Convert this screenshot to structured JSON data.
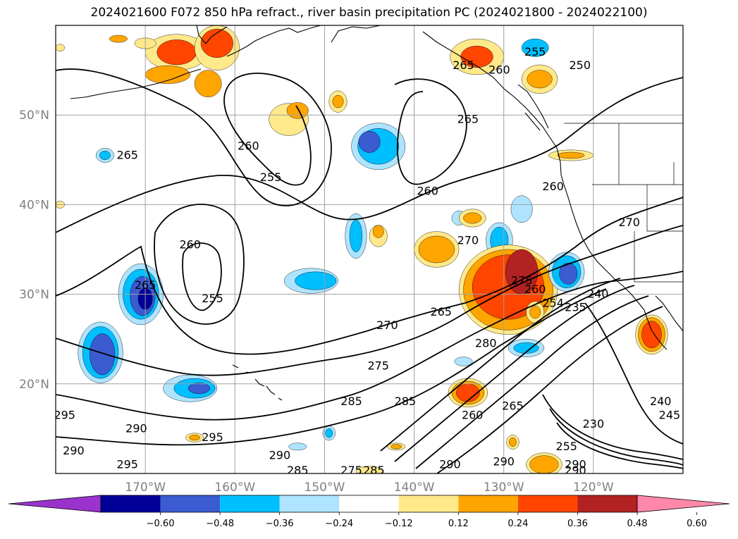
{
  "title": "2024021600 F072 850 hPa refract., river basin precipitation PC (2024021800 - 2024022100)",
  "map": {
    "lon_range": [
      -180,
      -110
    ],
    "lat_range": [
      10,
      60
    ],
    "lat_labels": [
      {
        "lat": 50,
        "text": "50°N"
      },
      {
        "lat": 40,
        "text": "40°N"
      },
      {
        "lat": 30,
        "text": "30°N"
      },
      {
        "lat": 20,
        "text": "20°N"
      }
    ],
    "lon_labels": [
      {
        "lon": -170,
        "text": "170°W"
      },
      {
        "lon": -160,
        "text": "160°W"
      },
      {
        "lon": -150,
        "text": "150°W"
      },
      {
        "lon": -140,
        "text": "140°W"
      },
      {
        "lon": -130,
        "text": "130°W"
      },
      {
        "lon": -120,
        "text": "120°W"
      }
    ],
    "gridline_color": "#a0a0a0",
    "contour_labels": [
      {
        "text": "255",
        "lon": -126.5,
        "lat": 57.0
      },
      {
        "text": "250",
        "lon": -121.5,
        "lat": 55.5
      },
      {
        "text": "260",
        "lon": -130.5,
        "lat": 55.0
      },
      {
        "text": "265",
        "lon": -134.5,
        "lat": 55.5
      },
      {
        "text": "265",
        "lon": -134.0,
        "lat": 49.5
      },
      {
        "text": "265",
        "lon": -172.0,
        "lat": 45.5
      },
      {
        "text": "260",
        "lon": -158.5,
        "lat": 46.5
      },
      {
        "text": "255",
        "lon": -156.0,
        "lat": 43.0
      },
      {
        "text": "260",
        "lon": -138.5,
        "lat": 41.5
      },
      {
        "text": "260",
        "lon": -124.5,
        "lat": 42.0
      },
      {
        "text": "260",
        "lon": -165.0,
        "lat": 35.5
      },
      {
        "text": "255",
        "lon": -162.5,
        "lat": 29.5
      },
      {
        "text": "265",
        "lon": -170.0,
        "lat": 31.0
      },
      {
        "text": "270",
        "lon": -134.0,
        "lat": 36.0
      },
      {
        "text": "270",
        "lon": -116.0,
        "lat": 38.0
      },
      {
        "text": "265",
        "lon": -137.0,
        "lat": 28.0
      },
      {
        "text": "270",
        "lon": -143.0,
        "lat": 26.5
      },
      {
        "text": "280",
        "lon": -132.0,
        "lat": 24.5
      },
      {
        "text": "275",
        "lon": -144.0,
        "lat": 22.0
      },
      {
        "text": "275",
        "lon": -128.0,
        "lat": 31.5
      },
      {
        "text": "260",
        "lon": -126.5,
        "lat": 30.5
      },
      {
        "text": "240",
        "lon": -119.5,
        "lat": 30.0
      },
      {
        "text": "254",
        "lon": -124.5,
        "lat": 29.0
      },
      {
        "text": "235",
        "lon": -122.0,
        "lat": 28.5
      },
      {
        "text": "285",
        "lon": -147.0,
        "lat": 18.0
      },
      {
        "text": "285",
        "lon": -141.0,
        "lat": 18.0
      },
      {
        "text": "260",
        "lon": -133.5,
        "lat": 16.5
      },
      {
        "text": "265",
        "lon": -129.0,
        "lat": 17.5
      },
      {
        "text": "230",
        "lon": -120.0,
        "lat": 15.5
      },
      {
        "text": "240",
        "lon": -112.5,
        "lat": 18.0
      },
      {
        "text": "245",
        "lon": -111.5,
        "lat": 16.5
      },
      {
        "text": "295",
        "lon": -179.0,
        "lat": 16.5
      },
      {
        "text": "290",
        "lon": -171.0,
        "lat": 15.0
      },
      {
        "text": "295",
        "lon": -162.5,
        "lat": 14.0
      },
      {
        "text": "290",
        "lon": -178.0,
        "lat": 12.5
      },
      {
        "text": "295",
        "lon": -172.0,
        "lat": 11.0
      },
      {
        "text": "290",
        "lon": -155.0,
        "lat": 12.0
      },
      {
        "text": "285",
        "lon": -153.0,
        "lat": 10.3
      },
      {
        "text": "275",
        "lon": -147.0,
        "lat": 10.3
      },
      {
        "text": "285",
        "lon": -144.5,
        "lat": 10.3
      },
      {
        "text": "290",
        "lon": -136.0,
        "lat": 11.0
      },
      {
        "text": "290",
        "lon": -130.0,
        "lat": 11.3
      },
      {
        "text": "290",
        "lon": -122.0,
        "lat": 11.0
      },
      {
        "text": "290",
        "lon": -122.0,
        "lat": 10.3
      },
      {
        "text": "255",
        "lon": -123.0,
        "lat": 13.0
      }
    ],
    "filled_regions": [
      {
        "cls": "pos-1",
        "lon": -166.5,
        "lat": 57.0,
        "rx": 3.5,
        "ry": 2.0
      },
      {
        "cls": "pos-3",
        "lon": -166.5,
        "lat": 57.0,
        "rx": 2.2,
        "ry": 1.4
      },
      {
        "cls": "pos-1",
        "lon": -162.0,
        "lat": 57.5,
        "rx": 2.5,
        "ry": 2.5
      },
      {
        "cls": "pos-3",
        "lon": -162.0,
        "lat": 58.0,
        "rx": 1.8,
        "ry": 1.6
      },
      {
        "cls": "pos-2",
        "lon": -167.5,
        "lat": 54.5,
        "rx": 2.5,
        "ry": 1.0
      },
      {
        "cls": "pos-2",
        "lon": -163.0,
        "lat": 53.5,
        "rx": 1.5,
        "ry": 1.5
      },
      {
        "cls": "pos-1",
        "lon": -133.0,
        "lat": 56.5,
        "rx": 3.0,
        "ry": 2.0
      },
      {
        "cls": "pos-3",
        "lon": -133.0,
        "lat": 56.5,
        "rx": 1.8,
        "ry": 1.2
      },
      {
        "cls": "pos-1",
        "lon": -126.0,
        "lat": 54.0,
        "rx": 2.0,
        "ry": 1.6
      },
      {
        "cls": "pos-2",
        "lon": -126.0,
        "lat": 54.0,
        "rx": 1.4,
        "ry": 1.0
      },
      {
        "cls": "neg-2",
        "lon": -126.5,
        "lat": 57.5,
        "rx": 1.5,
        "ry": 1.0
      },
      {
        "cls": "pos-1",
        "lon": -170.0,
        "lat": 58.0,
        "rx": 1.2,
        "ry": 0.6
      },
      {
        "cls": "pos-2",
        "lon": -173.0,
        "lat": 58.5,
        "rx": 1.0,
        "ry": 0.4
      },
      {
        "cls": "pos-1",
        "lon": -148.5,
        "lat": 51.5,
        "rx": 1.0,
        "ry": 1.2
      },
      {
        "cls": "pos-2",
        "lon": -148.5,
        "lat": 51.5,
        "rx": 0.6,
        "ry": 0.7
      },
      {
        "cls": "pos-1",
        "lon": -154.0,
        "lat": 49.5,
        "rx": 2.2,
        "ry": 1.8
      },
      {
        "cls": "pos-2",
        "lon": -153.0,
        "lat": 50.5,
        "rx": 1.2,
        "ry": 0.9
      },
      {
        "cls": "pos-1",
        "lon": -122.5,
        "lat": 45.5,
        "rx": 2.5,
        "ry": 0.6
      },
      {
        "cls": "pos-2",
        "lon": -122.5,
        "lat": 45.5,
        "rx": 1.5,
        "ry": 0.35
      },
      {
        "cls": "neg-1",
        "lon": -144.0,
        "lat": 46.5,
        "rx": 3.0,
        "ry": 2.6
      },
      {
        "cls": "neg-2",
        "lon": -144.0,
        "lat": 46.5,
        "rx": 2.3,
        "ry": 2.0
      },
      {
        "cls": "neg-3",
        "lon": -145.0,
        "lat": 47.0,
        "rx": 1.2,
        "ry": 1.2
      },
      {
        "cls": "neg-1",
        "lon": -174.5,
        "lat": 45.5,
        "rx": 1.0,
        "ry": 0.8
      },
      {
        "cls": "neg-2",
        "lon": -174.5,
        "lat": 45.5,
        "rx": 0.6,
        "ry": 0.5
      },
      {
        "cls": "neg-1",
        "lon": -135.0,
        "lat": 38.5,
        "rx": 0.8,
        "ry": 0.8
      },
      {
        "cls": "neg-1",
        "lon": -128.0,
        "lat": 39.5,
        "rx": 1.2,
        "ry": 1.5
      },
      {
        "cls": "neg-1",
        "lon": -130.5,
        "lat": 36.0,
        "rx": 1.5,
        "ry": 2.0
      },
      {
        "cls": "neg-2",
        "lon": -130.5,
        "lat": 36.0,
        "rx": 1.0,
        "ry": 1.5
      },
      {
        "cls": "neg-1",
        "lon": -146.5,
        "lat": 36.5,
        "rx": 1.2,
        "ry": 2.5
      },
      {
        "cls": "neg-2",
        "lon": -146.5,
        "lat": 36.5,
        "rx": 0.7,
        "ry": 1.8
      },
      {
        "cls": "pos-1",
        "lon": -144.0,
        "lat": 36.5,
        "rx": 1.0,
        "ry": 1.2
      },
      {
        "cls": "pos-2",
        "lon": -144.0,
        "lat": 37.0,
        "rx": 0.6,
        "ry": 0.7
      },
      {
        "cls": "pos-1",
        "lon": -137.5,
        "lat": 35.0,
        "rx": 2.5,
        "ry": 2.0
      },
      {
        "cls": "pos-2",
        "lon": -137.5,
        "lat": 35.0,
        "rx": 2.0,
        "ry": 1.5
      },
      {
        "cls": "pos-1",
        "lon": -133.5,
        "lat": 38.5,
        "rx": 1.5,
        "ry": 1.0
      },
      {
        "cls": "pos-2",
        "lon": -133.5,
        "lat": 38.5,
        "rx": 1.0,
        "ry": 0.6
      },
      {
        "cls": "neg-1",
        "lon": -151.5,
        "lat": 31.5,
        "rx": 3.0,
        "ry": 1.4
      },
      {
        "cls": "neg-2",
        "lon": -151.0,
        "lat": 31.5,
        "rx": 2.3,
        "ry": 1.0
      },
      {
        "cls": "pos-1",
        "lon": -129.5,
        "lat": 30.5,
        "rx": 5.5,
        "ry": 5.0
      },
      {
        "cls": "pos-2",
        "lon": -129.5,
        "lat": 30.5,
        "rx": 5.0,
        "ry": 4.5
      },
      {
        "cls": "pos-3",
        "lon": -129.5,
        "lat": 30.8,
        "rx": 4.0,
        "ry": 3.6
      },
      {
        "cls": "pos-4",
        "lon": -128.0,
        "lat": 32.5,
        "rx": 1.8,
        "ry": 2.5
      },
      {
        "cls": "pos-1",
        "lon": -126.5,
        "lat": 28.0,
        "rx": 1.0,
        "ry": 1.2
      },
      {
        "cls": "pos-2",
        "lon": -126.5,
        "lat": 28.0,
        "rx": 0.6,
        "ry": 0.7
      },
      {
        "cls": "neg-1",
        "lon": -123.0,
        "lat": 32.5,
        "rx": 2.0,
        "ry": 2.2
      },
      {
        "cls": "neg-2",
        "lon": -123.0,
        "lat": 32.5,
        "rx": 1.6,
        "ry": 1.8
      },
      {
        "cls": "neg-3",
        "lon": -122.8,
        "lat": 32.3,
        "rx": 1.0,
        "ry": 1.2
      },
      {
        "cls": "neg-1",
        "lon": -170.5,
        "lat": 30.0,
        "rx": 2.5,
        "ry": 3.4
      },
      {
        "cls": "neg-2",
        "lon": -170.5,
        "lat": 30.0,
        "rx": 2.0,
        "ry": 2.8
      },
      {
        "cls": "neg-3",
        "lon": -170.3,
        "lat": 29.8,
        "rx": 1.4,
        "ry": 2.2
      },
      {
        "cls": "neg-4",
        "lon": -170.0,
        "lat": 29.5,
        "rx": 0.8,
        "ry": 1.2
      },
      {
        "cls": "neg-1",
        "lon": -175.0,
        "lat": 23.5,
        "rx": 2.5,
        "ry": 3.4
      },
      {
        "cls": "neg-2",
        "lon": -175.0,
        "lat": 23.5,
        "rx": 2.0,
        "ry": 2.9
      },
      {
        "cls": "neg-3",
        "lon": -174.8,
        "lat": 23.3,
        "rx": 1.4,
        "ry": 2.3
      },
      {
        "cls": "neg-1",
        "lon": -165.0,
        "lat": 19.5,
        "rx": 3.0,
        "ry": 1.5
      },
      {
        "cls": "neg-2",
        "lon": -164.5,
        "lat": 19.5,
        "rx": 2.3,
        "ry": 1.1
      },
      {
        "cls": "neg-3",
        "lon": -164.0,
        "lat": 19.5,
        "rx": 1.2,
        "ry": 0.6
      },
      {
        "cls": "neg-1",
        "lon": -127.5,
        "lat": 24.0,
        "rx": 2.0,
        "ry": 1.0
      },
      {
        "cls": "neg-2",
        "lon": -127.5,
        "lat": 24.0,
        "rx": 1.4,
        "ry": 0.6
      },
      {
        "cls": "neg-1",
        "lon": -134.5,
        "lat": 22.5,
        "rx": 1.0,
        "ry": 0.5
      },
      {
        "cls": "neg-1",
        "lon": -149.5,
        "lat": 14.5,
        "rx": 0.7,
        "ry": 0.8
      },
      {
        "cls": "neg-2",
        "lon": -149.5,
        "lat": 14.5,
        "rx": 0.4,
        "ry": 0.5
      },
      {
        "cls": "neg-1",
        "lon": -153.0,
        "lat": 13.0,
        "rx": 1.0,
        "ry": 0.4
      },
      {
        "cls": "pos-1",
        "lon": -134.0,
        "lat": 19.0,
        "rx": 2.2,
        "ry": 1.6
      },
      {
        "cls": "pos-2",
        "lon": -134.0,
        "lat": 19.0,
        "rx": 1.8,
        "ry": 1.3
      },
      {
        "cls": "pos-3",
        "lon": -134.0,
        "lat": 19.0,
        "rx": 1.3,
        "ry": 1.0
      },
      {
        "cls": "pos-1",
        "lon": -164.5,
        "lat": 14.0,
        "rx": 1.0,
        "ry": 0.5
      },
      {
        "cls": "pos-2",
        "lon": -164.5,
        "lat": 14.0,
        "rx": 0.6,
        "ry": 0.3
      },
      {
        "cls": "pos-1",
        "lon": -142.0,
        "lat": 13.0,
        "rx": 1.0,
        "ry": 0.4
      },
      {
        "cls": "pos-2",
        "lon": -142.0,
        "lat": 13.0,
        "rx": 0.6,
        "ry": 0.25
      },
      {
        "cls": "pos-1",
        "lon": -129.0,
        "lat": 13.5,
        "rx": 0.7,
        "ry": 0.8
      },
      {
        "cls": "pos-2",
        "lon": -129.0,
        "lat": 13.5,
        "rx": 0.4,
        "ry": 0.5
      },
      {
        "cls": "pos-1",
        "lon": -125.5,
        "lat": 11.0,
        "rx": 2.0,
        "ry": 1.3
      },
      {
        "cls": "pos-2",
        "lon": -125.5,
        "lat": 11.0,
        "rx": 1.6,
        "ry": 1.0
      },
      {
        "cls": "pos-1",
        "lon": -145.0,
        "lat": 10.3,
        "rx": 1.5,
        "ry": 0.5
      },
      {
        "cls": "pos-1",
        "lon": -113.5,
        "lat": 25.5,
        "rx": 1.8,
        "ry": 2.2
      },
      {
        "cls": "pos-2",
        "lon": -113.5,
        "lat": 25.5,
        "rx": 1.5,
        "ry": 1.9
      },
      {
        "cls": "pos-3",
        "lon": -113.5,
        "lat": 25.5,
        "rx": 1.1,
        "ry": 1.5
      },
      {
        "cls": "pos-1",
        "lon": -179.5,
        "lat": 57.5,
        "rx": 0.5,
        "ry": 0.4
      },
      {
        "cls": "pos-1",
        "lon": -179.5,
        "lat": 40.0,
        "rx": 0.5,
        "ry": 0.4
      }
    ]
  },
  "colorbar": {
    "tick_labels": [
      "−0.60",
      "−0.48",
      "−0.36",
      "−0.24",
      "−0.12",
      "0.12",
      "0.24",
      "0.36",
      "0.48",
      "0.60"
    ],
    "colors": [
      "#9933cc",
      "#000099",
      "#3b5bd1",
      "#00bfff",
      "#aee4ff",
      "#ffffff",
      "#ffe98a",
      "#ffa500",
      "#ff4500",
      "#b22222",
      "#ff88aa"
    ]
  },
  "palette": {
    "neg-1": "#aee4ff",
    "neg-2": "#00bfff",
    "neg-3": "#3b5bd1",
    "neg-4": "#000099",
    "pos-1": "#ffe98a",
    "pos-2": "#ffa500",
    "pos-3": "#ff4500",
    "pos-4": "#b22222"
  }
}
